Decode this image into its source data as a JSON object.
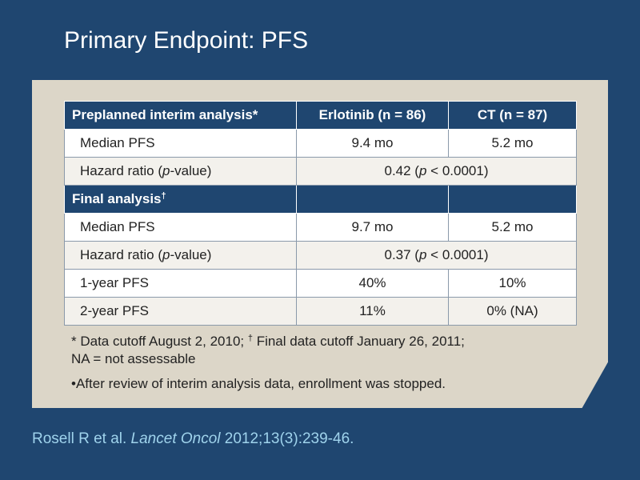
{
  "title": "Primary Endpoint: PFS",
  "table": {
    "headers": [
      "Preplanned interim analysis*",
      "Erlotinib (n = 86)",
      "CT (n = 87)"
    ],
    "interim": {
      "median_pfs": {
        "label": "Median PFS",
        "erlotinib": "9.4 mo",
        "ct": "5.2 mo"
      },
      "hazard_ratio": {
        "label_pre": "Hazard ratio (",
        "label_italic": "p",
        "label_post": "-value)",
        "value_pre": "0.42 (",
        "value_italic": "p",
        "value_post": " < 0.0001)"
      }
    },
    "final_section": {
      "label": "Final analysis",
      "marker": "†"
    },
    "final": {
      "median_pfs": {
        "label": "Median PFS",
        "erlotinib": "9.7 mo",
        "ct": "5.2 mo"
      },
      "hazard_ratio": {
        "label_pre": "Hazard ratio (",
        "label_italic": "p",
        "label_post": "-value)",
        "value_pre": "0.37 (",
        "value_italic": "p",
        "value_post": " < 0.0001)"
      },
      "one_year_pfs": {
        "label": "1-year PFS",
        "erlotinib": "40%",
        "ct": "10%"
      },
      "two_year_pfs": {
        "label": "2-year PFS",
        "erlotinib": "11%",
        "ct": "0% (NA)"
      }
    }
  },
  "footnote": {
    "part1": "* Data cutoff August 2, 2010; ",
    "marker": "†",
    "part2": " Final data cutoff January 26, 2011;",
    "line2": "NA = not assessable"
  },
  "bullet": "•After review of interim analysis data, enrollment was stopped.",
  "citation": {
    "authors": "Rosell R et al. ",
    "journal": "Lancet Oncol",
    "details": " 2012;13(3):239-46."
  },
  "colors": {
    "background": "#1f4670",
    "panel": "#dcd6c8",
    "citation": "#9fd3ec"
  }
}
